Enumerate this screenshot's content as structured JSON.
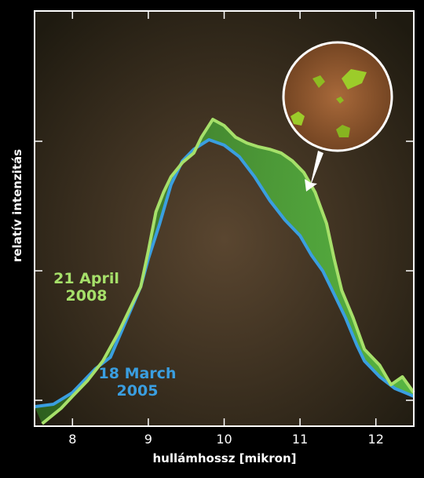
{
  "chart_data": {
    "type": "line",
    "xlabel": "hullámhossz [mikron]",
    "ylabel": "relatív intenzitás",
    "xlim": [
      7.5,
      12.5
    ],
    "xticks": [
      8,
      9,
      10,
      11,
      12
    ],
    "ylim": [
      0,
      100
    ],
    "series": [
      {
        "name": "21 April 2008",
        "color": "#a6e06a",
        "x": [
          7.6,
          7.85,
          8.0,
          8.2,
          8.4,
          8.6,
          8.8,
          8.9,
          9.0,
          9.1,
          9.2,
          9.3,
          9.45,
          9.6,
          9.7,
          9.85,
          10.0,
          10.15,
          10.3,
          10.45,
          10.6,
          10.75,
          10.9,
          11.05,
          11.2,
          11.35,
          11.45,
          11.55,
          11.7,
          11.85,
          12.05,
          12.2,
          12.35,
          12.5
        ],
        "values": [
          0.6,
          4.3,
          7.2,
          11.0,
          15.7,
          22.3,
          29.9,
          33.6,
          42.2,
          51.6,
          56.3,
          60.1,
          63.5,
          65.8,
          69.6,
          73.9,
          72.4,
          69.6,
          68.2,
          67.3,
          66.7,
          65.8,
          63.9,
          61.1,
          56.3,
          48.8,
          40.3,
          32.7,
          26.1,
          18.5,
          14.7,
          10.0,
          11.9,
          8.1
        ]
      },
      {
        "name": "18 March 2005",
        "color": "#3a9ee0",
        "x": [
          7.5,
          7.75,
          8.0,
          8.3,
          8.5,
          8.7,
          8.9,
          9.0,
          9.15,
          9.3,
          9.45,
          9.6,
          9.8,
          10.0,
          10.2,
          10.4,
          10.6,
          10.8,
          11.0,
          11.15,
          11.3,
          11.45,
          11.6,
          11.75,
          11.85,
          12.05,
          12.25,
          12.5
        ],
        "values": [
          4.7,
          5.3,
          8.1,
          13.8,
          16.6,
          25.1,
          33.6,
          40.3,
          48.8,
          58.2,
          63.9,
          66.7,
          69.0,
          67.7,
          64.9,
          60.1,
          54.4,
          49.7,
          45.9,
          41.2,
          37.4,
          31.8,
          26.1,
          19.5,
          15.7,
          11.9,
          9.1,
          7.2
        ]
      }
    ]
  }
}
